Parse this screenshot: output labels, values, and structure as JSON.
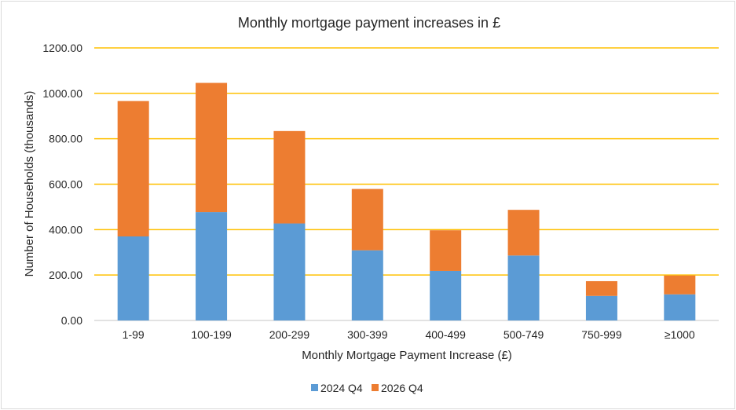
{
  "chart_data": {
    "type": "bar",
    "stacked": true,
    "title": "Monthly mortgage payment increases in £",
    "xlabel": "Monthly Mortgage Payment Increase (£)",
    "ylabel": "Number of Households (thousands)",
    "ylim": [
      0,
      1200
    ],
    "yticks": [
      "0.00",
      "200.00",
      "400.00",
      "600.00",
      "800.00",
      "1000.00",
      "1200.00"
    ],
    "grid": true,
    "legend_position": "bottom",
    "categories": [
      "1-99",
      "100-199",
      "200-299",
      "300-399",
      "400-499",
      "500-749",
      "750-999",
      "≥1000"
    ],
    "series": [
      {
        "name": "2024 Q4",
        "color": "#5b9bd5",
        "values": [
          370,
          477,
          427,
          309,
          218,
          286,
          108,
          115
        ]
      },
      {
        "name": "2026 Q4",
        "color": "#ed7d31",
        "values": [
          596,
          569,
          407,
          270,
          179,
          201,
          65,
          83
        ]
      }
    ],
    "gridline_color": "#ffc000"
  }
}
